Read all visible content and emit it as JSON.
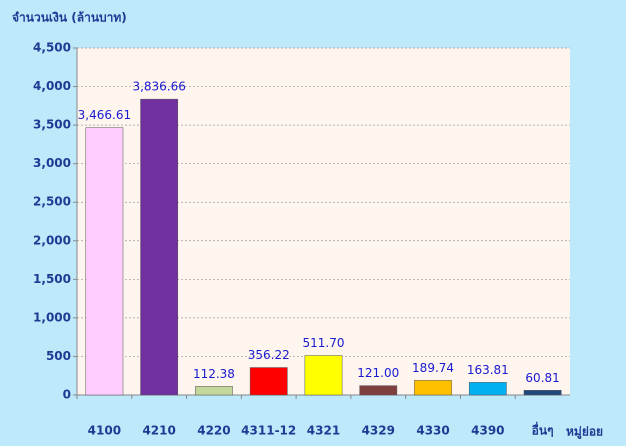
{
  "chart_data": {
    "type": "bar",
    "y_axis_label": "จำนวนเงิน (ล้านบาท)",
    "x_axis_label": "หมู่ย่อย",
    "categories": [
      "4100",
      "4210",
      "4220",
      "4311-12",
      "4321",
      "4329",
      "4330",
      "4390",
      "อื่นๆ"
    ],
    "values": [
      3466.61,
      3836.66,
      112.38,
      356.22,
      511.7,
      121.0,
      189.74,
      163.81,
      60.81
    ],
    "value_labels": [
      "3,466.61",
      "3,836.66",
      "112.38",
      "356.22",
      "511.70",
      "121.00",
      "189.74",
      "163.81",
      "60.81"
    ],
    "colors": [
      "#ffccff",
      "#7030a0",
      "#c4d79b",
      "#ff0000",
      "#ffff00",
      "#7f3f3f",
      "#ffc000",
      "#00b0f0",
      "#1f497d"
    ],
    "ylim": [
      0,
      4500
    ],
    "yticks": [
      0,
      500,
      {
        "value": 1000,
        "label": "1,000"
      },
      {
        "value": 1500,
        "label": "1,500"
      },
      {
        "value": 2000,
        "label": "2,000"
      },
      {
        "value": 2500,
        "label": "2,500"
      },
      {
        "value": 3000,
        "label": "3,000"
      },
      {
        "value": 3500,
        "label": "3,500"
      },
      {
        "value": 4000,
        "label": "4,000"
      },
      {
        "value": 4500,
        "label": "4,500"
      }
    ],
    "grid": true
  }
}
